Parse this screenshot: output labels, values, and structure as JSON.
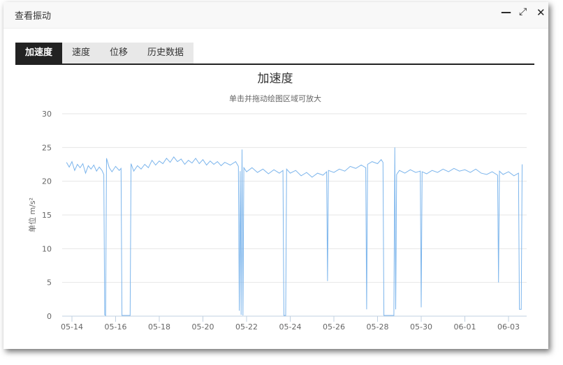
{
  "window": {
    "title": "查看振动",
    "minimize_icon": "minimize-icon",
    "maximize_icon": "maximize-icon",
    "close_icon": "close-icon"
  },
  "tabs": [
    {
      "label": "加速度",
      "active": true
    },
    {
      "label": "速度"
    },
    {
      "label": "位移"
    },
    {
      "label": "历史数据"
    }
  ],
  "chart_data": {
    "type": "line",
    "title": "加速度",
    "subtitle": "单击并拖动绘图区域可放大",
    "ylabel": "单位 m/s²",
    "xlabel": "",
    "ylim": [
      0,
      30
    ],
    "yticks": [
      0,
      5,
      10,
      15,
      20,
      25,
      30
    ],
    "xticks": [
      "05-14",
      "05-16",
      "05-18",
      "05-20",
      "05-22",
      "05-24",
      "05-26",
      "05-28",
      "05-30",
      "06-01",
      "06-03"
    ],
    "grid": true,
    "color": "#7cb5ec",
    "points": [
      [
        "05-13 18",
        22.8
      ],
      [
        "05-13 21",
        22.1
      ],
      [
        "05-14 00",
        22.9
      ],
      [
        "05-14 03",
        21.6
      ],
      [
        "05-14 06",
        22.5
      ],
      [
        "05-14 09",
        22.0
      ],
      [
        "05-14 12",
        22.6
      ],
      [
        "05-14 15",
        21.2
      ],
      [
        "05-14 18",
        22.3
      ],
      [
        "05-14 21",
        21.8
      ],
      [
        "05-15 00",
        22.4
      ],
      [
        "05-15 03",
        21.5
      ],
      [
        "05-15 06",
        22.1
      ],
      [
        "05-15 09",
        21.6
      ],
      [
        "05-15 11",
        21.0
      ],
      [
        "05-15 12",
        0.2
      ],
      [
        "05-15 13",
        0.1
      ],
      [
        "05-15 14",
        23.4
      ],
      [
        "05-15 17",
        22.0
      ],
      [
        "05-15 20",
        21.4
      ],
      [
        "05-16 00",
        22.2
      ],
      [
        "05-16 04",
        21.6
      ],
      [
        "05-16 06",
        21.9
      ],
      [
        "05-16 07",
        0.1
      ],
      [
        "05-16 16",
        0.1
      ],
      [
        "05-16 17",
        22.6
      ],
      [
        "05-16 20",
        21.5
      ],
      [
        "05-17 00",
        22.3
      ],
      [
        "05-17 04",
        21.8
      ],
      [
        "05-17 08",
        22.5
      ],
      [
        "05-17 12",
        22.0
      ],
      [
        "05-17 16",
        23.1
      ],
      [
        "05-17 20",
        22.4
      ],
      [
        "05-18 00",
        23.0
      ],
      [
        "05-18 04",
        22.6
      ],
      [
        "05-18 08",
        23.4
      ],
      [
        "05-18 12",
        22.8
      ],
      [
        "05-18 16",
        23.6
      ],
      [
        "05-18 20",
        22.9
      ],
      [
        "05-19 00",
        23.3
      ],
      [
        "05-19 04",
        22.5
      ],
      [
        "05-19 08",
        23.1
      ],
      [
        "05-19 12",
        22.7
      ],
      [
        "05-19 16",
        23.4
      ],
      [
        "05-19 20",
        22.6
      ],
      [
        "05-20 00",
        23.2
      ],
      [
        "05-20 04",
        22.4
      ],
      [
        "05-20 08",
        23.0
      ],
      [
        "05-20 12",
        22.5
      ],
      [
        "05-20 16",
        22.9
      ],
      [
        "05-20 20",
        22.3
      ],
      [
        "05-21 00",
        22.8
      ],
      [
        "05-21 06",
        22.4
      ],
      [
        "05-21 12",
        22.9
      ],
      [
        "05-21 15",
        22.2
      ],
      [
        "05-21 16",
        0.8
      ],
      [
        "05-21 17",
        21.5
      ],
      [
        "05-21 18",
        0.2
      ],
      [
        "05-21 19",
        24.7
      ],
      [
        "05-21 20",
        0.1
      ],
      [
        "05-21 21",
        22.0
      ],
      [
        "05-22 00",
        21.4
      ],
      [
        "05-22 06",
        22.0
      ],
      [
        "05-22 12",
        21.3
      ],
      [
        "05-22 18",
        21.8
      ],
      [
        "05-23 00",
        21.1
      ],
      [
        "05-23 06",
        21.7
      ],
      [
        "05-23 12",
        21.2
      ],
      [
        "05-23 16",
        21.6
      ],
      [
        "05-23 17",
        0.1
      ],
      [
        "05-23 19",
        0.1
      ],
      [
        "05-23 20",
        21.8
      ],
      [
        "05-24 00",
        21.2
      ],
      [
        "05-24 06",
        21.6
      ],
      [
        "05-24 12",
        20.8
      ],
      [
        "05-24 18",
        21.3
      ],
      [
        "05-25 00",
        20.6
      ],
      [
        "05-25 06",
        21.2
      ],
      [
        "05-25 12",
        20.9
      ],
      [
        "05-25 16",
        21.4
      ],
      [
        "05-25 17",
        5.2
      ],
      [
        "05-25 18",
        21.6
      ],
      [
        "05-26 00",
        21.3
      ],
      [
        "05-26 06",
        21.8
      ],
      [
        "05-26 12",
        21.5
      ],
      [
        "05-26 18",
        22.2
      ],
      [
        "05-27 00",
        21.9
      ],
      [
        "05-27 06",
        22.4
      ],
      [
        "05-27 11",
        22.0
      ],
      [
        "05-27 12",
        1.0
      ],
      [
        "05-27 13",
        22.5
      ],
      [
        "05-27 18",
        22.9
      ],
      [
        "05-28 00",
        22.6
      ],
      [
        "05-28 04",
        23.2
      ],
      [
        "05-28 06",
        22.8
      ],
      [
        "05-28 07",
        0.1
      ],
      [
        "05-28 18",
        0.1
      ],
      [
        "05-28 19",
        25.0
      ],
      [
        "05-28 20",
        1.0
      ],
      [
        "05-28 21",
        21.0
      ],
      [
        "05-29 00",
        21.6
      ],
      [
        "05-29 06",
        21.2
      ],
      [
        "05-29 12",
        21.7
      ],
      [
        "05-29 18",
        21.3
      ],
      [
        "05-29 23",
        21.5
      ],
      [
        "05-30 00",
        1.3
      ],
      [
        "05-30 01",
        21.4
      ],
      [
        "05-30 06",
        21.1
      ],
      [
        "05-30 12",
        21.6
      ],
      [
        "05-30 18",
        21.3
      ],
      [
        "05-31 00",
        21.8
      ],
      [
        "05-31 06",
        21.4
      ],
      [
        "05-31 12",
        21.9
      ],
      [
        "05-31 18",
        21.5
      ],
      [
        "06-01 00",
        21.7
      ],
      [
        "06-01 06",
        21.3
      ],
      [
        "06-01 12",
        21.8
      ],
      [
        "06-01 18",
        21.2
      ],
      [
        "06-02 00",
        21.0
      ],
      [
        "06-02 06",
        21.4
      ],
      [
        "06-02 12",
        20.9
      ],
      [
        "06-02 13",
        5.0
      ],
      [
        "06-02 14",
        21.5
      ],
      [
        "06-02 18",
        21.0
      ],
      [
        "06-03 00",
        21.4
      ],
      [
        "06-03 06",
        20.8
      ],
      [
        "06-03 11",
        21.2
      ],
      [
        "06-03 12",
        1.0
      ],
      [
        "06-03 14",
        1.0
      ],
      [
        "06-03 15",
        22.5
      ]
    ]
  }
}
